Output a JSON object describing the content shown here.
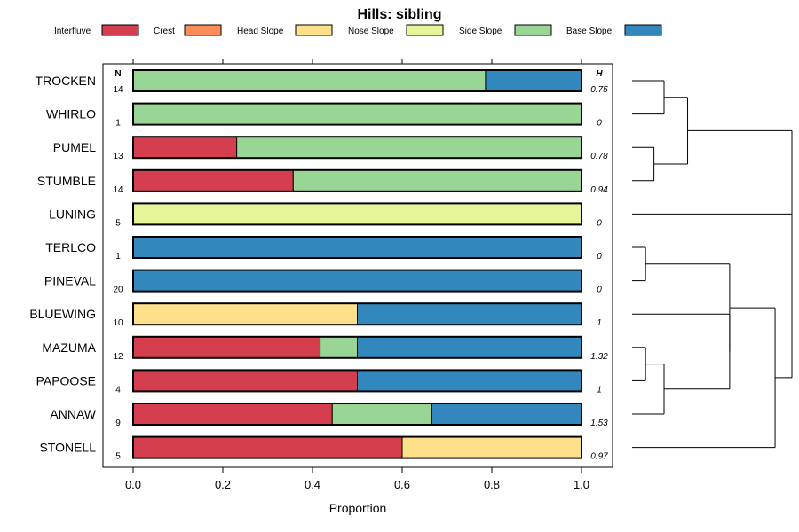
{
  "chart_data": {
    "type": "bar",
    "orientation": "horizontal-stacked",
    "title": "Hills: sibling",
    "xlabel": "Proportion",
    "xlim": [
      0,
      1
    ],
    "x_ticks": [
      "0.0",
      "0.2",
      "0.4",
      "0.6",
      "0.8",
      "1.0"
    ],
    "x_tick_values": [
      0,
      0.2,
      0.4,
      0.6,
      0.8,
      1.0
    ],
    "n_header": "N",
    "h_header": "H",
    "legend": [
      {
        "name": "Interfluve",
        "color": "#d53e4f"
      },
      {
        "name": "Crest",
        "color": "#fc8d59"
      },
      {
        "name": "Head Slope",
        "color": "#fee08b"
      },
      {
        "name": "Nose Slope",
        "color": "#e6f598"
      },
      {
        "name": "Side Slope",
        "color": "#99d594"
      },
      {
        "name": "Base Slope",
        "color": "#3288bd"
      }
    ],
    "rows": [
      {
        "label": "TROCKEN",
        "n": "14",
        "h": "0.75",
        "values": [
          0,
          0,
          0,
          0,
          0.786,
          0.214
        ]
      },
      {
        "label": "WHIRLO",
        "n": "1",
        "h": "0",
        "values": [
          0,
          0,
          0,
          0,
          1.0,
          0
        ]
      },
      {
        "label": "PUMEL",
        "n": "13",
        "h": "0.78",
        "values": [
          0.231,
          0,
          0,
          0,
          0.769,
          0
        ]
      },
      {
        "label": "STUMBLE",
        "n": "14",
        "h": "0.94",
        "values": [
          0.357,
          0,
          0,
          0,
          0.643,
          0
        ]
      },
      {
        "label": "LUNING",
        "n": "5",
        "h": "0",
        "values": [
          0,
          0,
          0,
          1.0,
          0,
          0
        ]
      },
      {
        "label": "TERLCO",
        "n": "1",
        "h": "0",
        "values": [
          0,
          0,
          0,
          0,
          0,
          1.0
        ]
      },
      {
        "label": "PINEVAL",
        "n": "20",
        "h": "0",
        "values": [
          0,
          0,
          0,
          0,
          0,
          1.0
        ]
      },
      {
        "label": "BLUEWING",
        "n": "10",
        "h": "1",
        "values": [
          0,
          0,
          0.5,
          0,
          0,
          0.5
        ]
      },
      {
        "label": "MAZUMA",
        "n": "12",
        "h": "1.32",
        "values": [
          0.417,
          0,
          0,
          0,
          0.083,
          0.5
        ]
      },
      {
        "label": "PAPOOSE",
        "n": "4",
        "h": "1",
        "values": [
          0.5,
          0,
          0,
          0,
          0,
          0.5
        ]
      },
      {
        "label": "ANNAW",
        "n": "9",
        "h": "1.53",
        "values": [
          0.444,
          0,
          0,
          0,
          0.222,
          0.334
        ]
      },
      {
        "label": "STONELL",
        "n": "5",
        "h": "0.97",
        "values": [
          0.6,
          0,
          0.4,
          0,
          0,
          0
        ]
      }
    ],
    "dendrogram": {
      "leaf_order": [
        "TROCKEN",
        "WHIRLO",
        "PUMEL",
        "STUMBLE",
        "LUNING",
        "TERLCO",
        "PINEVAL",
        "BLUEWING",
        "MAZUMA",
        "PAPOOSE",
        "ANNAW",
        "STONELL"
      ],
      "merges": [
        {
          "id": "A",
          "left": "TROCKEN",
          "right": "WHIRLO",
          "height": 0.19
        },
        {
          "id": "B",
          "left": "PUMEL",
          "right": "STUMBLE",
          "height": 0.13
        },
        {
          "id": "C",
          "left": "A",
          "right": "B",
          "height": 0.33
        },
        {
          "id": "D",
          "left": "C",
          "right": "LUNING",
          "height": 0.95
        },
        {
          "id": "E",
          "left": "TERLCO",
          "right": "PINEVAL",
          "height": 0.08
        },
        {
          "id": "F",
          "left": "MAZUMA",
          "right": "PAPOOSE",
          "height": 0.08
        },
        {
          "id": "G",
          "left": "F",
          "right": "ANNAW",
          "height": 0.19
        },
        {
          "id": "H",
          "left": "BLUEWING",
          "right": "G",
          "height": 0.58
        },
        {
          "id": "I",
          "left": "E",
          "right": "H",
          "height": 0.58
        },
        {
          "id": "J",
          "left": "I",
          "right": "STONELL",
          "height": 0.85
        },
        {
          "id": "K",
          "left": "D",
          "right": "J",
          "height": 0.95
        }
      ]
    }
  }
}
